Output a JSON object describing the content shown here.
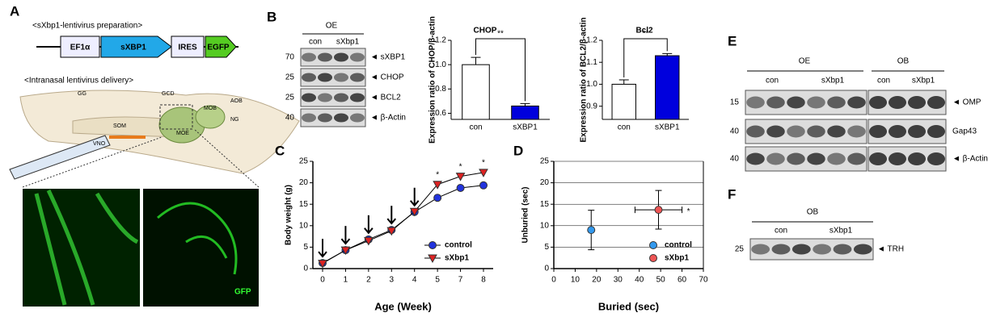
{
  "panels": {
    "A": {
      "label": "A",
      "construct_title": "<sXbp1-lentivirus preparation>",
      "construct": [
        "EF1α",
        "sXBP1",
        "IRES",
        "EGFP"
      ],
      "delivery_title": "<Intranasal lentivirus delivery>",
      "anatomy": [
        "GG",
        "GCD",
        "AOB",
        "MOB",
        "NG",
        "SOM",
        "VNO",
        "MOE"
      ],
      "image_label": "GFP"
    },
    "B": {
      "label": "B",
      "tissue": "OE",
      "lanes": [
        "con",
        "sXbp1"
      ],
      "markers": [
        70,
        25,
        25,
        40
      ],
      "bands": [
        "◄ sXBP1",
        "◄ CHOP",
        "◄ BCL2",
        "◄ β-Actin"
      ]
    },
    "E": {
      "label": "E",
      "tissues": [
        "OE",
        "OB"
      ],
      "lanes": [
        "con",
        "sXbp1",
        "con",
        "sXbp1"
      ],
      "markers": [
        15,
        40,
        40
      ],
      "bands": [
        "◄ OMP",
        "Gap43",
        "◄ β-Actin"
      ]
    },
    "F": {
      "label": "F",
      "tissue": "OB",
      "lanes": [
        "con",
        "sXbp1"
      ],
      "markers": [
        25
      ],
      "bands": [
        "◄ TRH"
      ]
    }
  },
  "chart_data": [
    {
      "type": "bar",
      "title": "CHOP",
      "y_label": "Expression ratio of CHOP/β-actin",
      "categories": [
        "con",
        "sXBP1"
      ],
      "values": [
        1.0,
        0.66
      ],
      "errors": [
        0.06,
        0.02
      ],
      "colors": [
        "#ffffff",
        "#0000dd"
      ],
      "ylim": [
        0.55,
        1.2
      ],
      "yticks": [
        0.6,
        0.8,
        {
          "value": 1,
          "label": "1.0"
        },
        1.2
      ],
      "annotation": "**"
    },
    {
      "type": "bar",
      "title": "Bcl2",
      "y_label": "Expression ratio of BCL2/β-actin",
      "categories": [
        "con",
        "sXBP1"
      ],
      "values": [
        1.0,
        1.13
      ],
      "errors": [
        0.02,
        0.01
      ],
      "colors": [
        "#ffffff",
        "#0000dd"
      ],
      "ylim": [
        0.84,
        1.2
      ],
      "yticks": [
        0.9,
        {
          "value": 1,
          "label": "1.0"
        },
        1.1,
        1.2
      ],
      "annotation": "**"
    },
    {
      "type": "line",
      "panel": "C",
      "x_label": "Age (Week)",
      "y_label": "Body weight (g)",
      "categories": [
        0,
        1,
        2,
        3,
        4,
        5,
        7,
        8
      ],
      "series": [
        {
          "name": "control",
          "color": "#2233dd",
          "marker": "circle",
          "values": [
            1.3,
            4.3,
            6.8,
            9.0,
            13.2,
            16.5,
            18.8,
            19.4
          ]
        },
        {
          "name": "sXbp1",
          "color": "#dd2222",
          "marker": "triangle",
          "values": [
            1.2,
            4.3,
            6.5,
            8.8,
            13.3,
            19.6,
            21.5,
            22.4
          ]
        }
      ],
      "ylim": [
        0,
        25
      ],
      "yticks": [
        0,
        5,
        10,
        15,
        20,
        25
      ],
      "annotations": [
        {
          "text": "*",
          "x": 5
        },
        {
          "text": "*",
          "x": 7
        },
        {
          "text": "*",
          "x": 8
        }
      ]
    },
    {
      "type": "scatter",
      "panel": "D",
      "x_label": "Buried (sec)",
      "y_label": "Unburied (sec)",
      "series": [
        {
          "name": "control",
          "color": "#3399ee",
          "x": [
            17.5
          ],
          "values": [
            9
          ],
          "xerr": [
            0.5
          ],
          "yerr": [
            4.6
          ]
        },
        {
          "name": "sXbp1",
          "color": "#ee5555",
          "x": [
            49
          ],
          "values": [
            13.7
          ],
          "xerr": [
            11
          ],
          "yerr": [
            4.5
          ]
        }
      ],
      "xlim": [
        0,
        70
      ],
      "xticks": [
        0,
        10,
        20,
        30,
        40,
        50,
        60,
        70
      ],
      "ylim": [
        0,
        25
      ],
      "yticks": [
        0,
        5,
        10,
        15,
        20,
        25
      ],
      "annotation": "*"
    }
  ]
}
